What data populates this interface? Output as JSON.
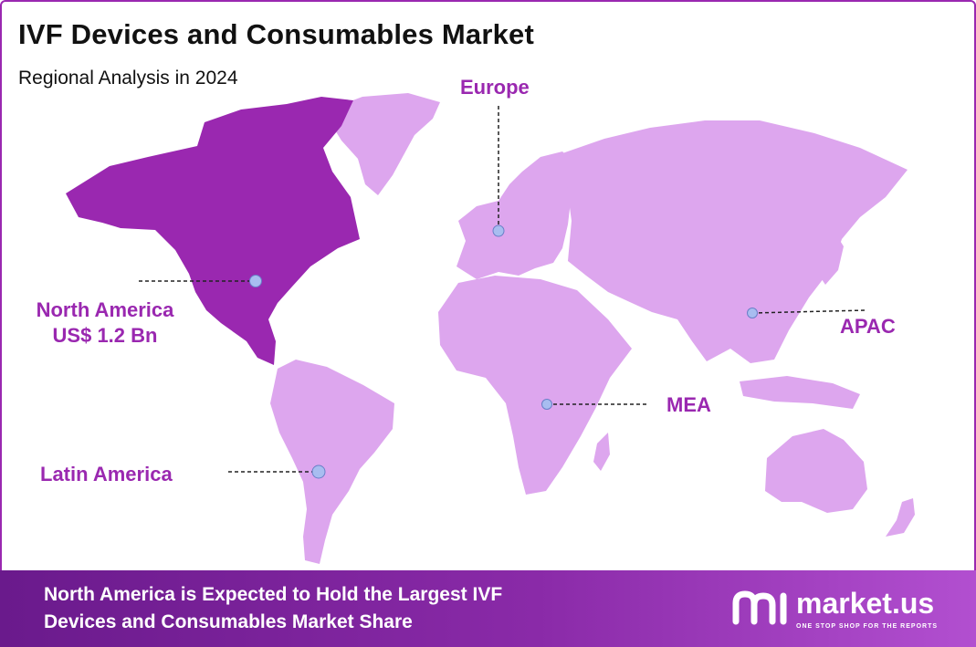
{
  "header": {
    "title": "IVF Devices and Consumables Market",
    "subtitle": "Regional Analysis in 2024"
  },
  "regions": {
    "north_america": {
      "name": "North America",
      "value": "US$ 1.2 Bn",
      "highlighted": true
    },
    "europe": {
      "name": "Europe"
    },
    "apac": {
      "name": "APAC"
    },
    "mea": {
      "name": "MEA"
    },
    "latin_america": {
      "name": "Latin America"
    }
  },
  "footer": {
    "line1": "North America is Expected to Hold the Largest IVF",
    "line2": "Devices and Consumables Market Share",
    "brand_name": "market.us",
    "brand_tagline": "ONE STOP SHOP FOR THE REPORTS"
  },
  "colors": {
    "highlight_region": "#9a28b0",
    "other_regions": "#dda6ee",
    "accent": "#9a28b0",
    "marker": "#a8bdf0",
    "banner": "#7a22a0"
  },
  "icons": {
    "marker": "dot-marker-icon",
    "logo": "market-us-logo"
  }
}
